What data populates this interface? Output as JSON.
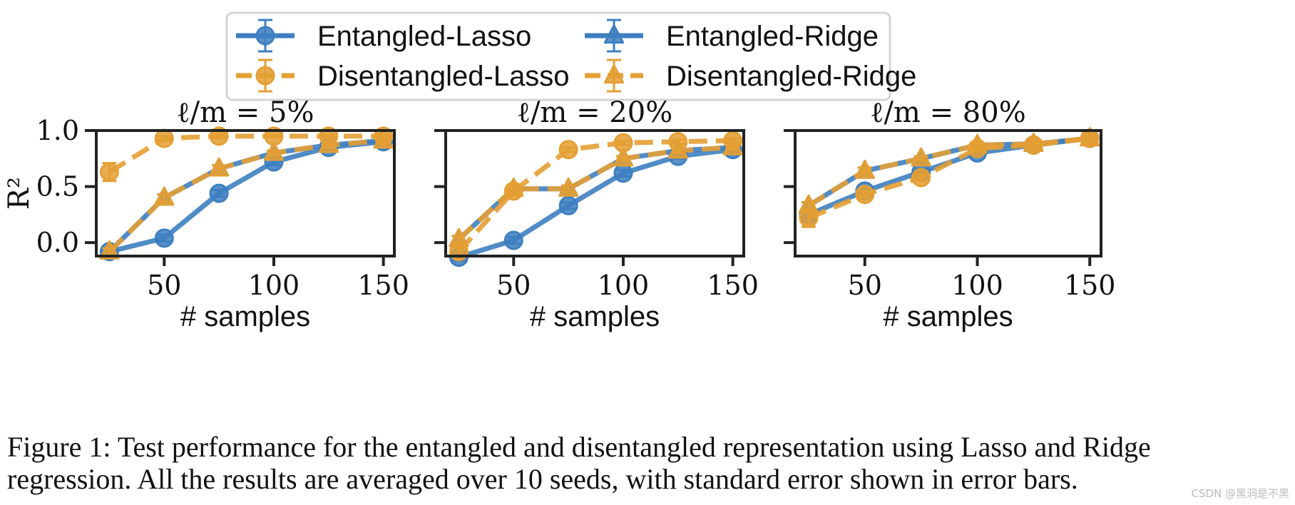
{
  "chart_data": [
    {
      "type": "line",
      "title": "ℓ/m = 5%",
      "xlabel": "# samples",
      "ylabel": "R²",
      "x": [
        25,
        50,
        75,
        100,
        125,
        150
      ],
      "xticks": [
        "50",
        "100",
        "150"
      ],
      "yticks": [
        "1.0",
        "0.5",
        "0.0"
      ],
      "xlim": [
        19,
        155
      ],
      "ylim": [
        -0.12,
        1.0
      ],
      "series": [
        {
          "name": "Entangled-Lasso",
          "values": [
            -0.08,
            0.04,
            0.44,
            0.72,
            0.85,
            0.9
          ],
          "err": [
            0.03,
            0.03,
            0.03,
            0.03,
            0.02,
            0.02
          ]
        },
        {
          "name": "Entangled-Ridge",
          "values": [
            -0.08,
            0.4,
            0.66,
            0.8,
            0.87,
            0.91
          ],
          "err": [
            0.03,
            0.03,
            0.03,
            0.02,
            0.02,
            0.02
          ]
        },
        {
          "name": "Disentangled-Lasso",
          "values": [
            0.63,
            0.93,
            0.95,
            0.95,
            0.95,
            0.95
          ],
          "err": [
            0.08,
            0.02,
            0.02,
            0.01,
            0.01,
            0.01
          ]
        },
        {
          "name": "Disentangled-Ridge",
          "values": [
            -0.08,
            0.4,
            0.66,
            0.8,
            0.87,
            0.91
          ],
          "err": [
            0.03,
            0.03,
            0.03,
            0.02,
            0.02,
            0.02
          ]
        }
      ]
    },
    {
      "type": "line",
      "title": "ℓ/m = 20%",
      "xlabel": "# samples",
      "ylabel": "",
      "x": [
        25,
        50,
        75,
        100,
        125,
        150
      ],
      "xticks": [
        "50",
        "100",
        "150"
      ],
      "yticks": [
        "",
        "",
        ""
      ],
      "xlim": [
        19,
        155
      ],
      "ylim": [
        -0.12,
        1.0
      ],
      "series": [
        {
          "name": "Entangled-Lasso",
          "values": [
            -0.13,
            0.02,
            0.33,
            0.62,
            0.77,
            0.83
          ],
          "err": [
            0.03,
            0.03,
            0.03,
            0.03,
            0.02,
            0.02
          ]
        },
        {
          "name": "Entangled-Ridge",
          "values": [
            0.03,
            0.48,
            0.48,
            0.75,
            0.82,
            0.85
          ],
          "err": [
            0.03,
            0.03,
            0.03,
            0.02,
            0.02,
            0.02
          ]
        },
        {
          "name": "Disentangled-Lasso",
          "values": [
            -0.08,
            0.46,
            0.83,
            0.89,
            0.9,
            0.91
          ],
          "err": [
            0.04,
            0.03,
            0.02,
            0.02,
            0.02,
            0.02
          ]
        },
        {
          "name": "Disentangled-Ridge",
          "values": [
            0.03,
            0.48,
            0.48,
            0.75,
            0.82,
            0.85
          ],
          "err": [
            0.03,
            0.03,
            0.03,
            0.02,
            0.02,
            0.02
          ]
        }
      ]
    },
    {
      "type": "line",
      "title": "ℓ/m = 80%",
      "xlabel": "# samples",
      "ylabel": "",
      "x": [
        25,
        50,
        75,
        100,
        125,
        150
      ],
      "xticks": [
        "50",
        "100",
        "150"
      ],
      "yticks": [
        "",
        "",
        ""
      ],
      "xlim": [
        19,
        155
      ],
      "ylim": [
        -0.12,
        1.0
      ],
      "series": [
        {
          "name": "Entangled-Lasso",
          "values": [
            0.25,
            0.46,
            0.63,
            0.8,
            0.87,
            0.93
          ],
          "err": [
            0.03,
            0.03,
            0.03,
            0.02,
            0.02,
            0.02
          ]
        },
        {
          "name": "Entangled-Ridge",
          "values": [
            0.33,
            0.64,
            0.75,
            0.87,
            0.88,
            0.93
          ],
          "err": [
            0.03,
            0.03,
            0.02,
            0.02,
            0.02,
            0.02
          ]
        },
        {
          "name": "Disentangled-Lasso",
          "values": [
            0.22,
            0.43,
            0.58,
            0.84,
            0.87,
            0.93
          ],
          "err": [
            0.08,
            0.03,
            0.03,
            0.02,
            0.02,
            0.02
          ]
        },
        {
          "name": "Disentangled-Ridge",
          "values": [
            0.33,
            0.64,
            0.75,
            0.87,
            0.88,
            0.93
          ],
          "err": [
            0.03,
            0.03,
            0.02,
            0.02,
            0.02,
            0.02
          ]
        }
      ]
    }
  ],
  "legend": {
    "placement": "top-center",
    "entries": [
      {
        "name": "Entangled-Lasso",
        "marker": "circle",
        "linestyle": "solid"
      },
      {
        "name": "Entangled-Ridge",
        "marker": "triangle",
        "linestyle": "solid"
      },
      {
        "name": "Disentangled-Lasso",
        "marker": "circle",
        "linestyle": "dashed"
      },
      {
        "name": "Disentangled-Ridge",
        "marker": "triangle",
        "linestyle": "dashed"
      }
    ]
  },
  "colors": {
    "entangled": "#3d7fc0",
    "disentangled": "#e49f34",
    "axes": "#222222"
  },
  "caption": {
    "line1": "Figure 1: Test performance for the entangled and disentangled representation using Lasso and Ridge",
    "line2": "regression. All the results are averaged over 10 seeds, with standard error shown in error bars."
  },
  "watermark": "CSDN @黑洞是不黑"
}
